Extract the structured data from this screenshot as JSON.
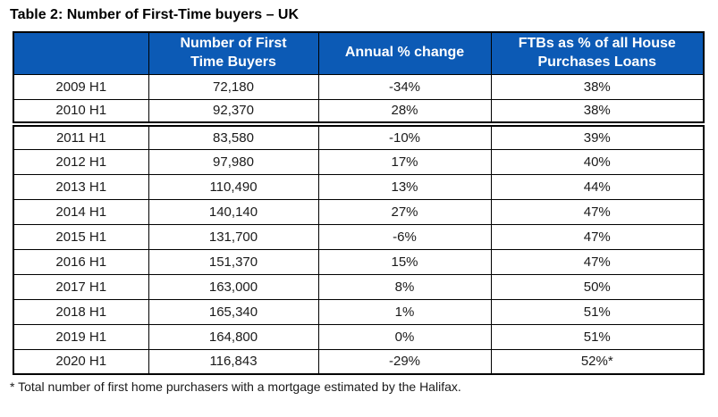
{
  "title": "Table 2: Number of First-Time buyers – UK",
  "footnote": "* Total number of first home purchasers with a mortgage estimated by the Halifax.",
  "colors": {
    "header_bg": "#0c5ab5",
    "header_text": "#ffffff",
    "border": "#000000",
    "body_text": "#1a1a1a"
  },
  "table": {
    "headers": [
      {
        "line1": "",
        "line2": ""
      },
      {
        "line1": "Number of First",
        "line2": "Time Buyers"
      },
      {
        "line1": "Annual % change",
        "line2": ""
      },
      {
        "line1": "FTBs as % of all House",
        "line2": "Purchases Loans"
      }
    ],
    "rows": [
      {
        "period": "2009 H1",
        "buyers": "72,180",
        "change": "-34%",
        "share": "38%"
      },
      {
        "period": "2010 H1",
        "buyers": "92,370",
        "change": "28%",
        "share": "38%"
      },
      {
        "period": "2011 H1",
        "buyers": "83,580",
        "change": "-10%",
        "share": "39%",
        "section_break": true
      },
      {
        "period": "2012 H1",
        "buyers": "97,980",
        "change": "17%",
        "share": "40%"
      },
      {
        "period": "2013 H1",
        "buyers": "110,490",
        "change": "13%",
        "share": "44%"
      },
      {
        "period": "2014 H1",
        "buyers": "140,140",
        "change": "27%",
        "share": "47%"
      },
      {
        "period": "2015 H1",
        "buyers": "131,700",
        "change": "-6%",
        "share": "47%"
      },
      {
        "period": "2016 H1",
        "buyers": "151,370",
        "change": "15%",
        "share": "47%"
      },
      {
        "period": "2017 H1",
        "buyers": "163,000",
        "change": "8%",
        "share": "50%"
      },
      {
        "period": "2018 H1",
        "buyers": "165,340",
        "change": "1%",
        "share": "51%"
      },
      {
        "period": "2019 H1",
        "buyers": "164,800",
        "change": "0%",
        "share": "51%"
      },
      {
        "period": "2020 H1",
        "buyers": "116,843",
        "change": "-29%",
        "share": "52%*"
      }
    ]
  }
}
